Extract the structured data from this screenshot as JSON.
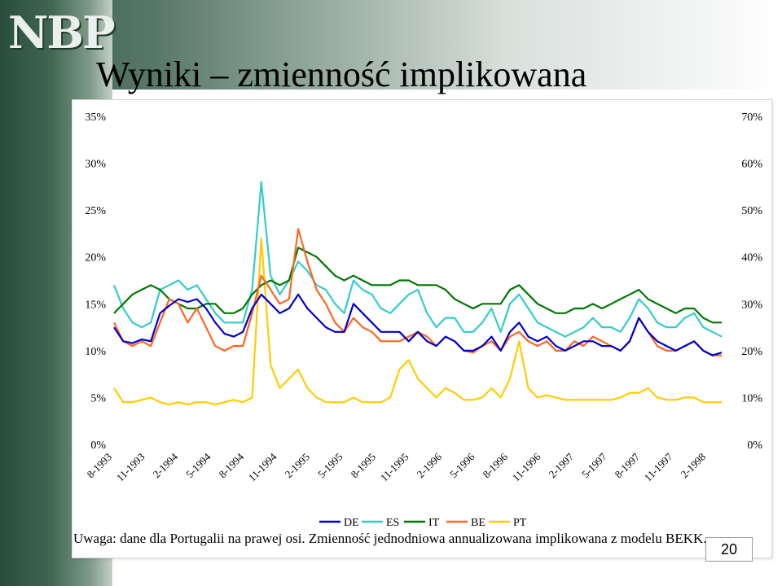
{
  "brand": {
    "logo_text": "NBP"
  },
  "slide": {
    "title": "Wyniki – zmienność implikowana",
    "note": "Uwaga: dane dla Portugalii na prawej osi. Zmienność jednodniowa annualizowana implikowana z modelu BEKK.",
    "page_number": "20"
  },
  "colors": {
    "DE": "#0000cc",
    "ES": "#33cccc",
    "IT": "#007700",
    "BE": "#ff6622",
    "PT": "#ffcc00"
  },
  "chart_data": {
    "type": "line",
    "title": "",
    "xlabel": "",
    "ylabel": "",
    "ylim": [
      0,
      35
    ],
    "y2lim": [
      0,
      70
    ],
    "y_ticks": [
      "35%",
      "30%",
      "25%",
      "20%",
      "15%",
      "10%",
      "5%",
      "0%"
    ],
    "y2_ticks": [
      "70%",
      "60%",
      "50%",
      "40%",
      "30%",
      "20%",
      "10%",
      "0%"
    ],
    "x_ticks": [
      "8-1993",
      "11-1993",
      "2-1994",
      "5-1994",
      "8-1994",
      "11-1994",
      "2-1995",
      "5-1995",
      "8-1995",
      "11-1995",
      "2-1996",
      "5-1996",
      "8-1996",
      "11-1996",
      "2-1997",
      "5-1997",
      "8-1997",
      "11-1997",
      "2-1998"
    ],
    "legend_position": "bottom",
    "grid": false,
    "series": [
      {
        "name": "DE",
        "axis": "left",
        "values": [
          12.5,
          11.0,
          10.8,
          11.2,
          11.0,
          14.0,
          14.8,
          15.5,
          15.2,
          15.5,
          14.5,
          13.0,
          11.8,
          11.5,
          12.0,
          14.5,
          16.0,
          15.0,
          14.0,
          14.5,
          16.0,
          14.5,
          13.5,
          12.5,
          12.0,
          12.0,
          15.0,
          14.0,
          13.0,
          12.0,
          12.0,
          12.0,
          11.0,
          12.0,
          11.0,
          10.5,
          11.5,
          11.0,
          10.0,
          10.0,
          10.5,
          11.5,
          10.0,
          12.0,
          13.0,
          11.5,
          11.0,
          11.5,
          10.5,
          10.0,
          10.5,
          11.0,
          11.0,
          10.5,
          10.5,
          10.0,
          11.0,
          13.5,
          12.0,
          11.0,
          10.5,
          10.0,
          10.5,
          11.0,
          10.0,
          9.5,
          9.8
        ]
      },
      {
        "name": "ES",
        "axis": "left",
        "values": [
          17.0,
          14.5,
          13.0,
          12.5,
          13.0,
          16.5,
          17.0,
          17.5,
          16.5,
          17.0,
          15.5,
          14.0,
          13.0,
          13.0,
          13.0,
          16.5,
          28.0,
          18.0,
          16.0,
          17.5,
          19.5,
          18.5,
          17.0,
          16.5,
          15.0,
          14.0,
          17.5,
          16.5,
          16.0,
          14.5,
          14.0,
          15.0,
          16.0,
          16.5,
          14.0,
          12.5,
          13.5,
          13.5,
          12.0,
          12.0,
          13.0,
          14.5,
          12.0,
          15.0,
          16.0,
          14.5,
          13.0,
          12.5,
          12.0,
          11.5,
          12.0,
          12.5,
          13.5,
          12.5,
          12.5,
          12.0,
          13.5,
          15.5,
          14.5,
          13.0,
          12.5,
          12.5,
          13.5,
          14.0,
          12.5,
          12.0,
          11.5
        ]
      },
      {
        "name": "IT",
        "axis": "left",
        "values": [
          14.0,
          15.0,
          16.0,
          16.5,
          17.0,
          16.5,
          15.5,
          15.0,
          14.5,
          14.5,
          15.0,
          15.0,
          14.0,
          14.0,
          14.5,
          16.0,
          17.0,
          17.5,
          17.0,
          17.5,
          21.0,
          20.5,
          20.0,
          19.0,
          18.0,
          17.5,
          18.0,
          17.5,
          17.0,
          17.0,
          17.0,
          17.5,
          17.5,
          17.0,
          17.0,
          17.0,
          16.5,
          15.5,
          15.0,
          14.5,
          15.0,
          15.0,
          15.0,
          16.5,
          17.0,
          16.0,
          15.0,
          14.5,
          14.0,
          14.0,
          14.5,
          14.5,
          15.0,
          14.5,
          15.0,
          15.5,
          16.0,
          16.5,
          15.5,
          15.0,
          14.5,
          14.0,
          14.5,
          14.5,
          13.5,
          13.0,
          13.0
        ]
      },
      {
        "name": "BE",
        "axis": "left",
        "values": [
          13.0,
          11.0,
          10.5,
          11.0,
          10.5,
          13.0,
          15.5,
          15.0,
          13.0,
          14.5,
          12.5,
          10.5,
          10.0,
          10.5,
          10.5,
          14.0,
          18.0,
          16.5,
          15.0,
          15.5,
          23.0,
          19.5,
          16.5,
          15.0,
          13.0,
          12.0,
          13.5,
          12.5,
          12.0,
          11.0,
          11.0,
          11.0,
          11.5,
          12.0,
          11.5,
          10.5,
          11.5,
          11.0,
          10.0,
          9.8,
          10.5,
          11.0,
          10.0,
          11.5,
          12.0,
          11.0,
          10.5,
          11.0,
          10.0,
          10.0,
          11.0,
          10.5,
          11.5,
          11.0,
          10.5,
          10.0,
          11.0,
          13.5,
          12.0,
          10.5,
          10.0,
          10.0,
          10.5,
          11.0,
          10.0,
          9.5,
          9.5
        ]
      },
      {
        "name": "PT",
        "axis": "right",
        "values": [
          12.0,
          9.0,
          9.0,
          9.5,
          10.0,
          9.0,
          8.5,
          9.0,
          8.5,
          9.0,
          9.0,
          8.5,
          9.0,
          9.5,
          9.0,
          10.0,
          44.0,
          17.0,
          12.0,
          14.0,
          16.0,
          12.0,
          10.0,
          9.0,
          9.0,
          9.0,
          10.0,
          9.0,
          9.0,
          9.0,
          10.0,
          16.0,
          18.0,
          14.0,
          12.0,
          10.0,
          12.0,
          11.0,
          9.5,
          9.5,
          10.0,
          12.0,
          10.0,
          14.0,
          22.0,
          12.0,
          10.0,
          10.5,
          10.0,
          9.5,
          9.5,
          9.5,
          9.5,
          9.5,
          9.5,
          10.0,
          11.0,
          11.0,
          12.0,
          10.0,
          9.5,
          9.5,
          10.0,
          10.0,
          9.0,
          9.0,
          9.0
        ]
      }
    ]
  }
}
